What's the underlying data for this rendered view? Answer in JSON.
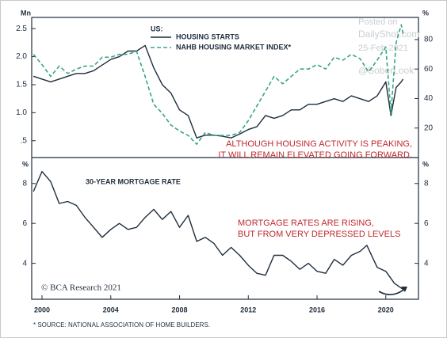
{
  "chart_data": [
    {
      "type": "line",
      "unit_left": "Mn",
      "unit_right": "%",
      "legend_title": "US:",
      "annotation": [
        "ALTHOUGH HOUSING ACTIVITY IS PEAKING,",
        "IT WILL REMAIN ELEVATED GOING FORWARD."
      ],
      "watermark": [
        "Posted on",
        "DailyShot.com",
        "25-Feb-2021",
        "@SoberLook"
      ],
      "x": [
        1999.5,
        2000,
        2000.5,
        2001,
        2001.5,
        2002,
        2002.5,
        2003,
        2003.5,
        2004,
        2004.5,
        2005,
        2005.5,
        2006,
        2006.5,
        2007,
        2007.5,
        2008,
        2008.5,
        2009,
        2009.5,
        2010,
        2010.5,
        2011,
        2011.5,
        2012,
        2012.5,
        2013,
        2013.5,
        2014,
        2014.5,
        2015,
        2015.5,
        2016,
        2016.5,
        2017,
        2017.5,
        2018,
        2018.5,
        2019,
        2019.5,
        2020,
        2020.3,
        2020.6,
        2020.9,
        2021
      ],
      "series": [
        {
          "name": "HOUSING STARTS",
          "color": "#1f2d3d",
          "dash": false,
          "values": [
            1.65,
            1.6,
            1.55,
            1.6,
            1.65,
            1.7,
            1.7,
            1.75,
            1.85,
            1.95,
            2.0,
            2.1,
            2.1,
            2.2,
            1.8,
            1.5,
            1.35,
            1.05,
            0.95,
            0.55,
            0.6,
            0.6,
            0.58,
            0.55,
            0.62,
            0.7,
            0.75,
            0.95,
            0.9,
            0.95,
            1.05,
            1.05,
            1.15,
            1.15,
            1.2,
            1.25,
            1.2,
            1.3,
            1.25,
            1.2,
            1.3,
            1.55,
            0.95,
            1.45,
            1.55,
            1.6
          ]
        },
        {
          "name": "NAHB HOUSING MARKET INDEX*",
          "color": "#3aa583",
          "dash": true,
          "axis": "y2",
          "values": [
            70,
            63,
            55,
            62,
            57,
            60,
            62,
            62,
            68,
            68,
            70,
            70,
            72,
            55,
            36,
            30,
            22,
            18,
            15,
            9,
            17,
            15,
            15,
            15,
            17,
            25,
            35,
            45,
            55,
            50,
            55,
            60,
            60,
            63,
            60,
            68,
            66,
            70,
            67,
            58,
            66,
            75,
            30,
            78,
            90,
            84
          ]
        }
      ],
      "xlim": [
        1999.4,
        2021.9
      ],
      "ylim": [
        0.2,
        2.7
      ],
      "yticks": [
        {
          "value": 0.5,
          "label": ".5"
        },
        {
          "value": 1,
          "label": "1.0"
        },
        1.5,
        {
          "value": 2,
          "label": "2.0"
        },
        2.5
      ],
      "y2lim": [
        0,
        95
      ],
      "y2ticks": [
        20,
        40,
        60,
        80
      ]
    },
    {
      "type": "line",
      "unit_left": "%",
      "unit_right": "%",
      "subtitle": "30-YEAR MORTGAGE RATE",
      "annotation": [
        "MORTGAGE RATES ARE RISING,",
        "BUT FROM VERY DEPRESSED LEVELS"
      ],
      "credit": "© BCA Research 2021",
      "footnote": "* SOURCE: NATIONAL ASSOCIATION OF HOME BUILDERS.",
      "x": [
        1999.5,
        2000,
        2000.5,
        2001,
        2001.5,
        2002,
        2002.5,
        2003,
        2003.5,
        2004,
        2004.5,
        2005,
        2005.5,
        2006,
        2006.5,
        2007,
        2007.5,
        2008,
        2008.5,
        2009,
        2009.5,
        2010,
        2010.5,
        2011,
        2011.5,
        2012,
        2012.5,
        2013,
        2013.5,
        2014,
        2014.5,
        2015,
        2015.5,
        2016,
        2016.5,
        2017,
        2017.5,
        2018,
        2018.5,
        2018.9,
        2019.5,
        2020,
        2020.5,
        2021
      ],
      "series": [
        {
          "name": "30-YEAR MORTGAGE RATE",
          "color": "#1f2d3d",
          "dash": false,
          "values": [
            7.6,
            8.6,
            8.1,
            7.0,
            7.1,
            6.9,
            6.3,
            5.8,
            5.3,
            5.7,
            6.0,
            5.7,
            5.8,
            6.3,
            6.7,
            6.2,
            6.6,
            5.8,
            6.4,
            5.1,
            5.3,
            5.0,
            4.4,
            4.8,
            4.4,
            3.9,
            3.5,
            3.4,
            4.4,
            4.4,
            4.1,
            3.7,
            4.0,
            3.6,
            3.5,
            4.2,
            3.9,
            4.4,
            4.6,
            4.9,
            3.8,
            3.6,
            3.0,
            2.7
          ]
        }
      ],
      "xlim": [
        1999.4,
        2021.9
      ],
      "xticks": [
        2000,
        2004,
        2008,
        2012,
        2016,
        2020
      ],
      "ylim": [
        2.2,
        9.3
      ],
      "yticks": [
        4,
        6,
        8
      ]
    }
  ]
}
